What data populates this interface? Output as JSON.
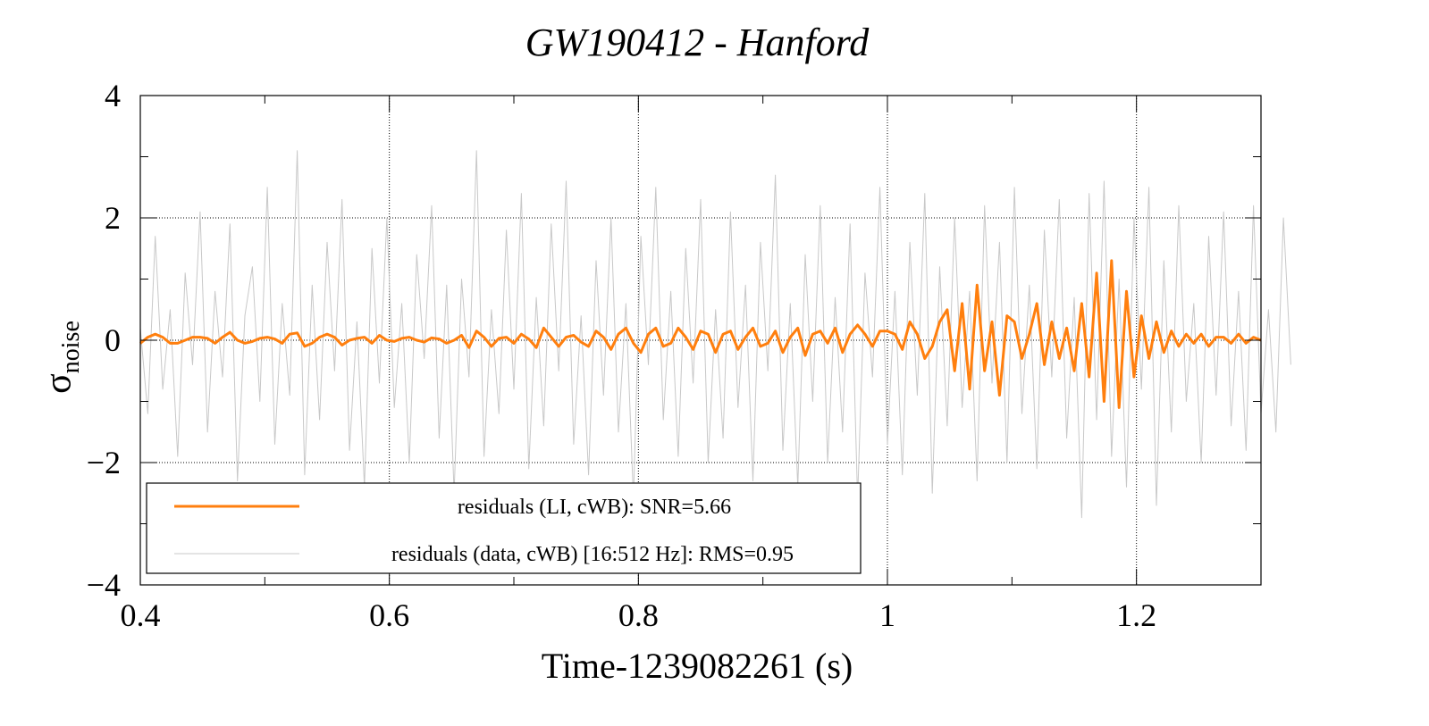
{
  "chart_data": {
    "type": "line",
    "title": "GW190412 - Hanford",
    "xlabel": "Time-1239082261 (s)",
    "ylabel": "σ",
    "ylabel_sub": "noise",
    "xlim": [
      0.4,
      1.3
    ],
    "ylim": [
      -4,
      4
    ],
    "xticks": [
      0.4,
      0.6,
      0.8,
      1,
      1.2
    ],
    "xtick_labels": [
      "0.4",
      "0.6",
      "0.8",
      "1",
      "1.2"
    ],
    "xminor": [
      0.5,
      0.7,
      0.9,
      1.1,
      1.3
    ],
    "yticks": [
      -4,
      -2,
      0,
      2,
      4
    ],
    "ytick_labels": [
      "−4",
      "−2",
      "0",
      "2",
      "4"
    ],
    "yminor": [
      -3,
      -1,
      1,
      3
    ],
    "grid": true,
    "legend_position": "bottom-left",
    "x0": 0.4,
    "dx": 0.006,
    "series": [
      {
        "name": "residuals (data, cWB) [16:512 Hz]: RMS=0.95",
        "color": "#c8c8c8",
        "values": [
          0.2,
          -1.2,
          1.7,
          -0.8,
          0.5,
          -1.9,
          1.1,
          -0.4,
          2.1,
          -1.5,
          0.8,
          -0.6,
          1.9,
          -2.3,
          0.4,
          1.2,
          -1.0,
          2.5,
          -1.7,
          0.6,
          -0.9,
          3.1,
          -2.2,
          0.9,
          -1.3,
          1.6,
          -0.5,
          2.3,
          -1.8,
          0.3,
          -2.4,
          1.5,
          -0.7,
          2.0,
          -1.1,
          0.6,
          -2.0,
          1.4,
          -0.3,
          2.2,
          -1.6,
          0.9,
          -2.5,
          1.0,
          -0.6,
          3.1,
          -1.9,
          0.5,
          -1.2,
          1.8,
          -0.8,
          2.4,
          -2.1,
          0.7,
          -1.4,
          1.9,
          -0.5,
          2.6,
          -1.7,
          0.4,
          -2.2,
          1.3,
          -0.9,
          2.0,
          -1.5,
          0.6,
          -2.6,
          1.7,
          -0.4,
          2.5,
          -1.3,
          0.8,
          -1.9,
          1.5,
          -0.7,
          2.3,
          -2.0,
          0.5,
          -1.6,
          2.1,
          -1.1,
          0.9,
          -2.3,
          1.6,
          -0.5,
          2.7,
          -1.8,
          0.6,
          -2.4,
          1.4,
          -1.0,
          2.2,
          -2.0,
          0.7,
          -1.5,
          1.9,
          -2.6,
          1.1,
          -0.6,
          2.5,
          -1.7,
          0.8,
          -2.2,
          1.6,
          -0.9,
          2.4,
          -2.5,
          1.2,
          -1.4,
          2.0,
          -1.1,
          0.8,
          -2.3,
          2.2,
          -0.7,
          1.6,
          -2.0,
          2.5,
          -1.2,
          0.9,
          -2.1,
          1.8,
          -0.6,
          2.3,
          -1.6,
          0.7,
          -2.9,
          2.4,
          -1.3,
          2.6,
          -1.9,
          1.0,
          -2.4,
          2.0,
          -0.8,
          2.5,
          -2.7,
          1.3,
          -1.5,
          2.2,
          -1.0,
          0.6,
          -2.0,
          1.7,
          -0.9,
          2.1,
          -1.4,
          0.8,
          -1.8,
          2.2,
          -1.2,
          0.5,
          -1.5,
          2.0,
          -0.4
        ]
      },
      {
        "name": "residuals (LI, cWB): SNR=5.66",
        "color": "#ff7f0e",
        "values": [
          -0.05,
          0.05,
          0.1,
          0.05,
          -0.05,
          -0.05,
          0,
          0.05,
          0.05,
          0.03,
          -0.05,
          0.05,
          0.13,
          0,
          -0.05,
          -0.02,
          0.03,
          0.05,
          0.02,
          -0.05,
          0.1,
          0.12,
          -0.1,
          -0.05,
          0.05,
          0.1,
          0.05,
          -0.08,
          0,
          0.03,
          0.05,
          -0.05,
          0.08,
          0,
          -0.02,
          0.03,
          0.05,
          0,
          -0.03,
          0.04,
          0.02,
          -0.05,
          0,
          0.08,
          -0.12,
          0.15,
          0.05,
          -0.1,
          0.03,
          0.05,
          -0.05,
          0.1,
          0.02,
          -0.12,
          0.2,
          0.05,
          -0.1,
          0.05,
          0.08,
          -0.03,
          -0.1,
          0.15,
          0.05,
          -0.15,
          0.1,
          0.2,
          -0.05,
          -0.2,
          0.1,
          0.2,
          -0.1,
          -0.05,
          0.2,
          0.05,
          -0.15,
          0.15,
          0.1,
          -0.2,
          0.1,
          0.15,
          -0.15,
          0.05,
          0.2,
          -0.1,
          -0.05,
          0.15,
          -0.2,
          0.05,
          0.2,
          -0.25,
          0.1,
          0.15,
          -0.05,
          0.2,
          -0.2,
          0.1,
          0.25,
          0.1,
          -0.1,
          0.15,
          0.15,
          0.1,
          -0.15,
          0.3,
          0.1,
          -0.3,
          -0.1,
          0.3,
          0.5,
          -0.5,
          0.6,
          -0.8,
          0.9,
          -0.5,
          0.3,
          -0.9,
          0.4,
          0.3,
          -0.3,
          0.1,
          0.6,
          -0.4,
          0.3,
          -0.3,
          0.2,
          -0.5,
          0.6,
          -0.6,
          1.1,
          -1.0,
          1.3,
          -1.1,
          0.8,
          -0.6,
          0.4,
          -0.3,
          0.3,
          -0.2,
          0.15,
          -0.1,
          0.1,
          -0.05,
          0.1,
          -0.1,
          0.05,
          0.05,
          -0.05,
          0.1,
          -0.05,
          0.05,
          0
        ]
      }
    ],
    "legend": [
      {
        "label": "residuals (LI, cWB): SNR=5.66",
        "color": "#ff7f0e"
      },
      {
        "label": "residuals (data, cWB) [16:512 Hz]: RMS=0.95",
        "color": "#c8c8c8"
      }
    ]
  }
}
